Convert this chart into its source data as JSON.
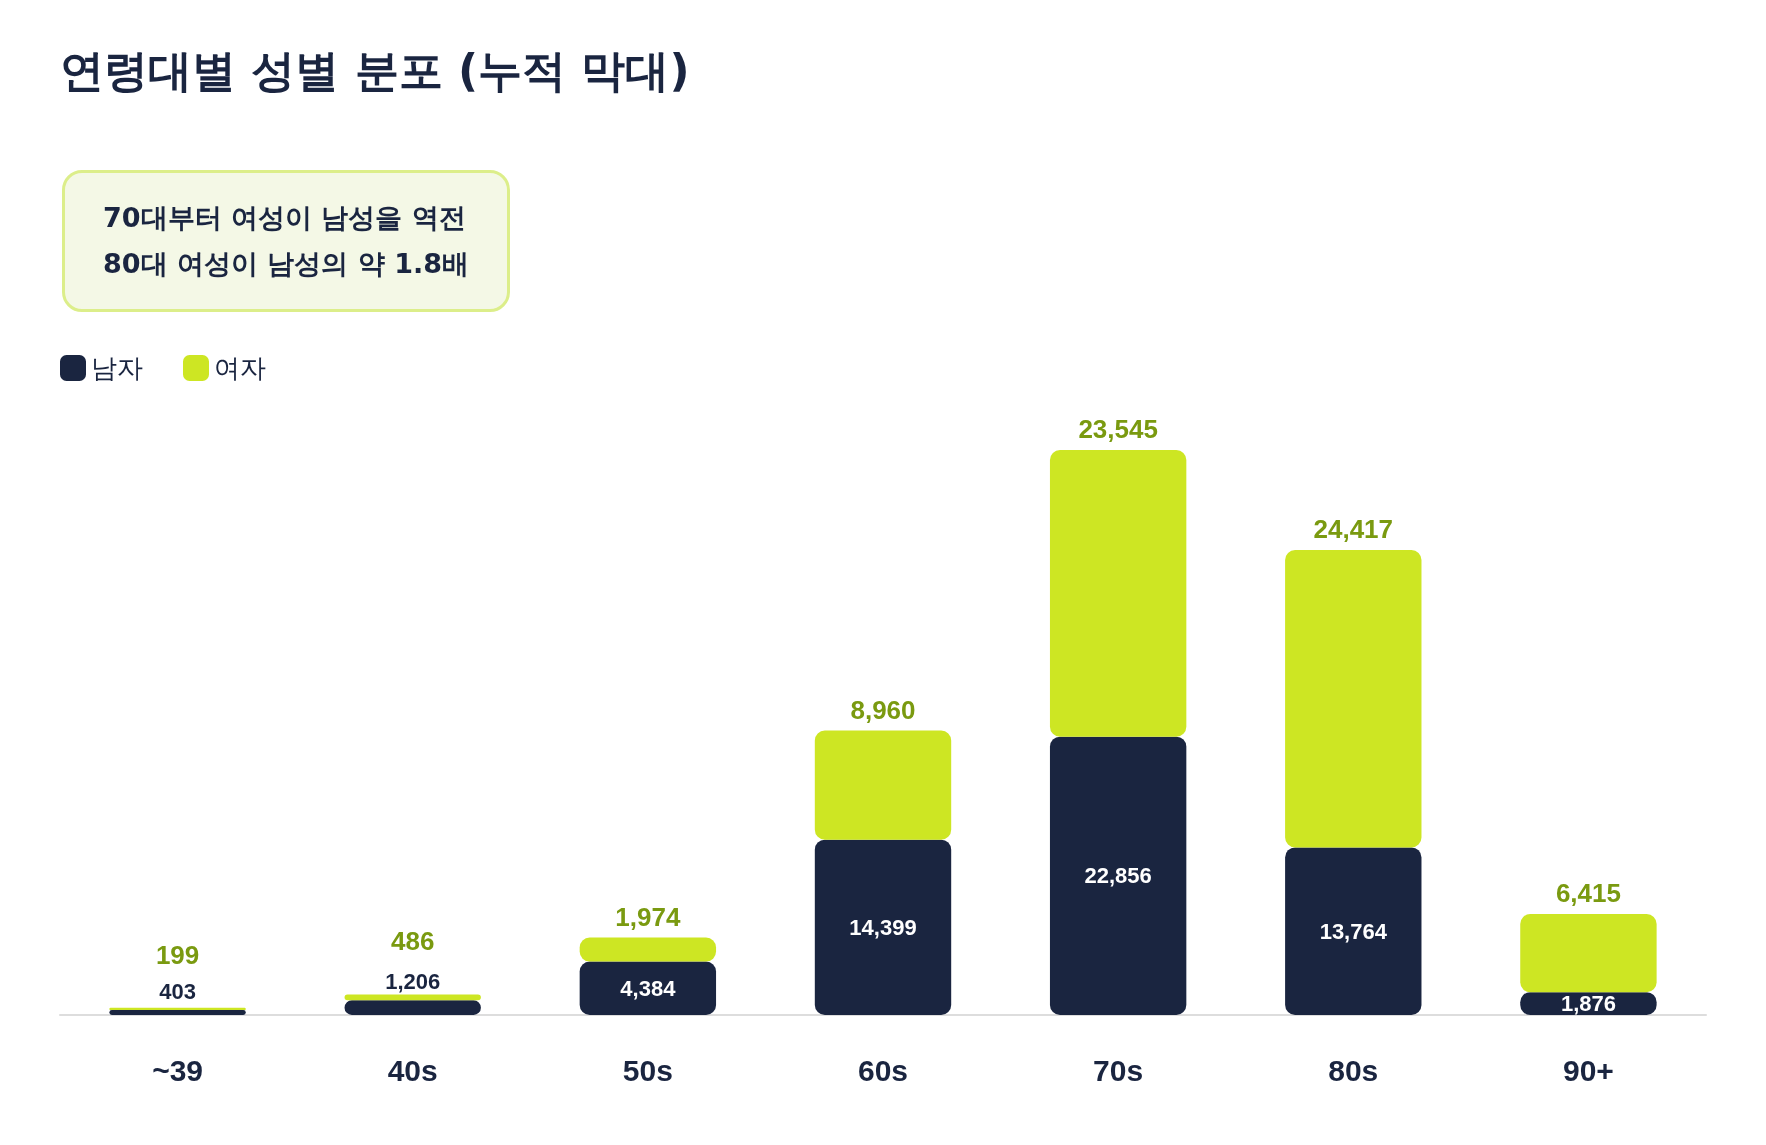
{
  "chart_data": {
    "type": "bar",
    "title": "연령대별 성별 분포 (누적 막대)",
    "annotations": [
      "70대부터 여성이 남성을 역전\n80대 여성이 남성의 약 1.8배"
    ],
    "categories": [
      "~39",
      "40s",
      "50s",
      "60s",
      "70s",
      "80s",
      "90+"
    ],
    "stacked": true,
    "legend": "top left",
    "grid": false,
    "series": [
      {
        "name": "남자",
        "color": "#1a2540",
        "values": [
          403,
          1206,
          4384,
          14399,
          22856,
          13764,
          1876
        ],
        "value_labels": [
          "403",
          "1,206",
          "4,384",
          "14,399",
          "22,856",
          "13,764",
          "1,876"
        ]
      },
      {
        "name": "여자",
        "color": "#cde623",
        "values": [
          199,
          486,
          1974,
          8960,
          23545,
          24417,
          6415
        ],
        "value_labels": [
          "199",
          "486",
          "1,974",
          "8,960",
          "23,545",
          "24,417",
          "6,415"
        ]
      }
    ]
  }
}
